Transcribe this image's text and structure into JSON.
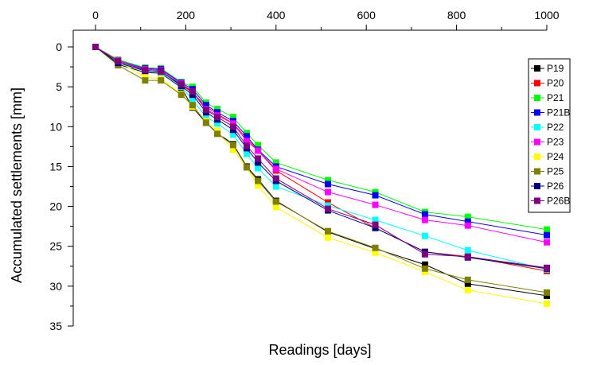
{
  "chart_data": {
    "type": "line",
    "title": "",
    "xlabel": "Readings [days]",
    "ylabel": "Accumulated settlements [mm]",
    "xlim": [
      0,
      1000
    ],
    "ylim": [
      35,
      0
    ],
    "y_inverted": true,
    "x_axis_position": "top",
    "xticks": [
      0,
      200,
      400,
      600,
      800,
      1000
    ],
    "yticks": [
      0,
      5,
      10,
      15,
      20,
      25,
      30,
      35
    ],
    "grid": false,
    "legend_position": "right",
    "x": [
      0,
      50,
      110,
      145,
      190,
      215,
      245,
      270,
      305,
      335,
      360,
      400,
      515,
      620,
      730,
      825,
      1000
    ],
    "series": [
      {
        "name": "P19",
        "color": "#000000",
        "values": [
          0,
          2.2,
          3.2,
          3.3,
          5.1,
          7.6,
          9.5,
          10.8,
          12.2,
          15.0,
          16.6,
          19.3,
          23.2,
          25.3,
          27.3,
          29.7,
          31.2
        ]
      },
      {
        "name": "P20",
        "color": "#ff0000",
        "values": [
          0,
          1.9,
          3.0,
          3.1,
          4.8,
          5.7,
          7.5,
          8.4,
          9.6,
          11.5,
          13.0,
          15.5,
          19.5,
          22.7,
          25.7,
          26.3,
          28.1
        ]
      },
      {
        "name": "P21",
        "color": "#00ff00",
        "values": [
          0,
          1.6,
          2.6,
          2.7,
          4.4,
          5.0,
          7.0,
          7.8,
          8.8,
          10.8,
          12.3,
          14.5,
          16.7,
          18.2,
          20.7,
          21.3,
          22.9
        ]
      },
      {
        "name": "P21B",
        "color": "#0000ff",
        "values": [
          0,
          1.7,
          2.7,
          2.8,
          4.5,
          5.3,
          7.3,
          8.2,
          9.3,
          11.2,
          12.9,
          15.0,
          17.2,
          18.6,
          21.0,
          21.9,
          23.6
        ]
      },
      {
        "name": "P22",
        "color": "#00ffff",
        "values": [
          0,
          1.9,
          3.0,
          3.2,
          5.0,
          6.6,
          8.8,
          9.6,
          11.0,
          13.4,
          15.2,
          17.5,
          19.9,
          21.7,
          23.7,
          25.5,
          27.9
        ]
      },
      {
        "name": "P23",
        "color": "#ff00ff",
        "values": [
          0,
          1.7,
          2.8,
          2.9,
          4.6,
          5.6,
          7.8,
          8.6,
          9.6,
          11.8,
          13.0,
          15.3,
          18.2,
          19.8,
          21.7,
          22.4,
          24.5
        ]
      },
      {
        "name": "P24",
        "color": "#ffff00",
        "values": [
          0,
          1.8,
          3.8,
          4.0,
          5.9,
          7.5,
          9.3,
          10.5,
          12.9,
          15.1,
          17.4,
          20.1,
          23.9,
          25.8,
          28.2,
          30.5,
          32.2
        ]
      },
      {
        "name": "P25",
        "color": "#808000",
        "values": [
          0,
          2.3,
          4.2,
          4.2,
          6.0,
          7.3,
          9.5,
          10.9,
          12.3,
          15.1,
          16.8,
          19.4,
          23.1,
          25.2,
          27.8,
          29.2,
          30.8
        ]
      },
      {
        "name": "P26",
        "color": "#000080",
        "values": [
          0,
          2.0,
          3.0,
          3.0,
          4.9,
          6.0,
          8.2,
          9.1,
          10.4,
          12.7,
          14.5,
          16.8,
          20.5,
          22.7,
          25.7,
          26.4,
          27.8
        ]
      },
      {
        "name": "P26B",
        "color": "#800080",
        "values": [
          0,
          1.8,
          2.9,
          3.1,
          4.7,
          5.6,
          7.9,
          8.8,
          10.0,
          12.4,
          14.0,
          16.5,
          20.3,
          22.3,
          26.0,
          26.3,
          27.7
        ]
      }
    ]
  }
}
